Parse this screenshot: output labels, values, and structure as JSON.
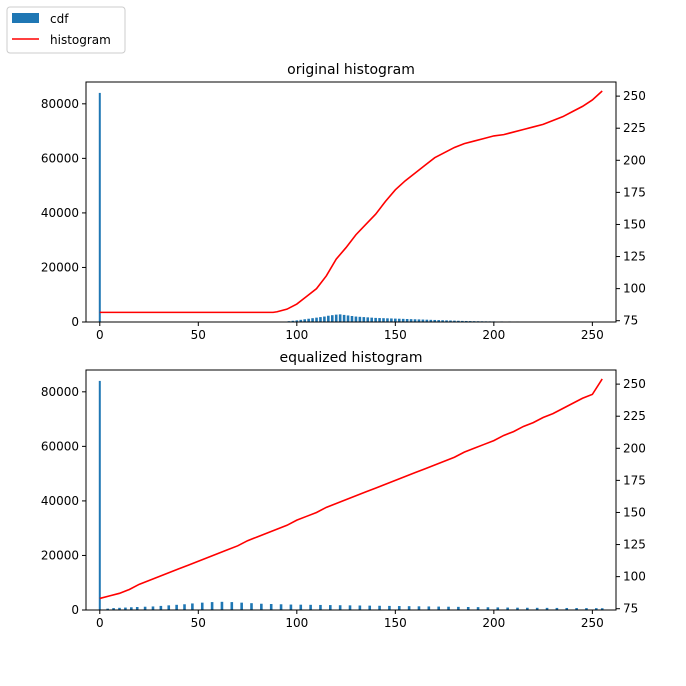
{
  "legend": {
    "placement": "top-left",
    "entries": [
      {
        "label": "cdf",
        "kind": "patch",
        "color": "#1f77b4"
      },
      {
        "label": "histogram",
        "kind": "line",
        "color": "#ff0000"
      }
    ]
  },
  "chart_data": [
    {
      "type": "bar",
      "title": "original histogram",
      "xlim": [
        -7,
        262
      ],
      "ylim": [
        0,
        88000
      ],
      "y2lim": [
        74,
        261
      ],
      "x_ticks": [
        0,
        50,
        100,
        150,
        200,
        250
      ],
      "y_ticks": [
        0,
        20000,
        40000,
        60000,
        80000
      ],
      "y2_ticks": [
        75,
        100,
        125,
        150,
        175,
        200,
        225,
        250
      ],
      "bar_color": "#1f77b4",
      "line_color": "#ff0000",
      "bars": [
        {
          "x": 0,
          "value": 84000
        },
        {
          "x": 96,
          "value": 300
        },
        {
          "x": 98,
          "value": 450
        },
        {
          "x": 100,
          "value": 600
        },
        {
          "x": 102,
          "value": 800
        },
        {
          "x": 104,
          "value": 1000
        },
        {
          "x": 106,
          "value": 1200
        },
        {
          "x": 108,
          "value": 1400
        },
        {
          "x": 110,
          "value": 1600
        },
        {
          "x": 112,
          "value": 1800
        },
        {
          "x": 114,
          "value": 2000
        },
        {
          "x": 116,
          "value": 2300
        },
        {
          "x": 118,
          "value": 2500
        },
        {
          "x": 120,
          "value": 2700
        },
        {
          "x": 122,
          "value": 2800
        },
        {
          "x": 124,
          "value": 2600
        },
        {
          "x": 126,
          "value": 2400
        },
        {
          "x": 128,
          "value": 2200
        },
        {
          "x": 130,
          "value": 2000
        },
        {
          "x": 132,
          "value": 1900
        },
        {
          "x": 134,
          "value": 1800
        },
        {
          "x": 136,
          "value": 1700
        },
        {
          "x": 138,
          "value": 1600
        },
        {
          "x": 140,
          "value": 1500
        },
        {
          "x": 142,
          "value": 1450
        },
        {
          "x": 144,
          "value": 1400
        },
        {
          "x": 146,
          "value": 1350
        },
        {
          "x": 148,
          "value": 1300
        },
        {
          "x": 150,
          "value": 1250
        },
        {
          "x": 152,
          "value": 1200
        },
        {
          "x": 154,
          "value": 1150
        },
        {
          "x": 156,
          "value": 1100
        },
        {
          "x": 158,
          "value": 1050
        },
        {
          "x": 160,
          "value": 1000
        },
        {
          "x": 162,
          "value": 950
        },
        {
          "x": 164,
          "value": 900
        },
        {
          "x": 166,
          "value": 850
        },
        {
          "x": 168,
          "value": 800
        },
        {
          "x": 170,
          "value": 750
        },
        {
          "x": 172,
          "value": 700
        },
        {
          "x": 174,
          "value": 650
        },
        {
          "x": 176,
          "value": 600
        },
        {
          "x": 178,
          "value": 550
        },
        {
          "x": 180,
          "value": 500
        },
        {
          "x": 182,
          "value": 450
        },
        {
          "x": 184,
          "value": 400
        },
        {
          "x": 186,
          "value": 370
        },
        {
          "x": 188,
          "value": 340
        },
        {
          "x": 190,
          "value": 310
        },
        {
          "x": 192,
          "value": 290
        },
        {
          "x": 194,
          "value": 270
        },
        {
          "x": 196,
          "value": 250
        },
        {
          "x": 198,
          "value": 240
        },
        {
          "x": 200,
          "value": 230
        },
        {
          "x": 204,
          "value": 210
        },
        {
          "x": 208,
          "value": 200
        },
        {
          "x": 212,
          "value": 190
        },
        {
          "x": 216,
          "value": 180
        },
        {
          "x": 220,
          "value": 170
        },
        {
          "x": 224,
          "value": 160
        },
        {
          "x": 228,
          "value": 150
        },
        {
          "x": 232,
          "value": 150
        },
        {
          "x": 236,
          "value": 140
        },
        {
          "x": 240,
          "value": 140
        },
        {
          "x": 244,
          "value": 130
        },
        {
          "x": 248,
          "value": 130
        },
        {
          "x": 252,
          "value": 120
        },
        {
          "x": 255,
          "value": 120
        }
      ],
      "line": {
        "x": [
          0,
          10,
          20,
          30,
          40,
          50,
          60,
          70,
          80,
          88,
          90,
          95,
          100,
          105,
          110,
          115,
          120,
          125,
          130,
          135,
          140,
          145,
          150,
          155,
          160,
          165,
          170,
          175,
          180,
          185,
          190,
          195,
          200,
          205,
          210,
          215,
          220,
          225,
          230,
          235,
          240,
          245,
          250,
          255
        ],
        "y": [
          81.5,
          81.5,
          81.5,
          81.5,
          81.5,
          81.5,
          81.5,
          81.5,
          81.5,
          81.5,
          82,
          84,
          88,
          94,
          100,
          110,
          123,
          132,
          142,
          150,
          158,
          168,
          177,
          184,
          190,
          196,
          202,
          206,
          210,
          213,
          215,
          217,
          219,
          220,
          222,
          224,
          226,
          228,
          231,
          234,
          238,
          242,
          247,
          254
        ]
      }
    },
    {
      "type": "bar",
      "title": "equalized histogram",
      "xlim": [
        -7,
        262
      ],
      "ylim": [
        0,
        88000
      ],
      "y2lim": [
        74,
        261
      ],
      "x_ticks": [
        0,
        50,
        100,
        150,
        200,
        250
      ],
      "y_ticks": [
        0,
        20000,
        40000,
        60000,
        80000
      ],
      "y2_ticks": [
        75,
        100,
        125,
        150,
        175,
        200,
        225,
        250
      ],
      "bar_color": "#1f77b4",
      "line_color": "#ff0000",
      "bars": [
        {
          "x": 0,
          "value": 84000
        },
        {
          "x": 4,
          "value": 500
        },
        {
          "x": 7,
          "value": 700
        },
        {
          "x": 10,
          "value": 800
        },
        {
          "x": 13,
          "value": 900
        },
        {
          "x": 16,
          "value": 1000
        },
        {
          "x": 19,
          "value": 1100
        },
        {
          "x": 23,
          "value": 1200
        },
        {
          "x": 27,
          "value": 1300
        },
        {
          "x": 31,
          "value": 1500
        },
        {
          "x": 35,
          "value": 1700
        },
        {
          "x": 39,
          "value": 1900
        },
        {
          "x": 43,
          "value": 2100
        },
        {
          "x": 47,
          "value": 2400
        },
        {
          "x": 52,
          "value": 2700
        },
        {
          "x": 57,
          "value": 2900
        },
        {
          "x": 62,
          "value": 3000
        },
        {
          "x": 67,
          "value": 2900
        },
        {
          "x": 72,
          "value": 2700
        },
        {
          "x": 77,
          "value": 2500
        },
        {
          "x": 82,
          "value": 2300
        },
        {
          "x": 87,
          "value": 2200
        },
        {
          "x": 92,
          "value": 2100
        },
        {
          "x": 97,
          "value": 2000
        },
        {
          "x": 102,
          "value": 1950
        },
        {
          "x": 107,
          "value": 1900
        },
        {
          "x": 112,
          "value": 1850
        },
        {
          "x": 117,
          "value": 1800
        },
        {
          "x": 122,
          "value": 1750
        },
        {
          "x": 127,
          "value": 1700
        },
        {
          "x": 132,
          "value": 1650
        },
        {
          "x": 137,
          "value": 1600
        },
        {
          "x": 142,
          "value": 1550
        },
        {
          "x": 147,
          "value": 1500
        },
        {
          "x": 152,
          "value": 1450
        },
        {
          "x": 157,
          "value": 1400
        },
        {
          "x": 162,
          "value": 1350
        },
        {
          "x": 167,
          "value": 1300
        },
        {
          "x": 172,
          "value": 1250
        },
        {
          "x": 177,
          "value": 1200
        },
        {
          "x": 182,
          "value": 1150
        },
        {
          "x": 187,
          "value": 1100
        },
        {
          "x": 192,
          "value": 1050
        },
        {
          "x": 197,
          "value": 1000
        },
        {
          "x": 202,
          "value": 950
        },
        {
          "x": 207,
          "value": 900
        },
        {
          "x": 212,
          "value": 850
        },
        {
          "x": 217,
          "value": 820
        },
        {
          "x": 222,
          "value": 800
        },
        {
          "x": 227,
          "value": 780
        },
        {
          "x": 232,
          "value": 760
        },
        {
          "x": 237,
          "value": 740
        },
        {
          "x": 242,
          "value": 720
        },
        {
          "x": 247,
          "value": 700
        },
        {
          "x": 252,
          "value": 680
        },
        {
          "x": 255,
          "value": 650
        }
      ],
      "line": {
        "x": [
          0,
          5,
          10,
          15,
          20,
          25,
          30,
          35,
          40,
          45,
          50,
          55,
          60,
          65,
          70,
          75,
          80,
          85,
          90,
          95,
          100,
          105,
          110,
          115,
          120,
          125,
          130,
          135,
          140,
          145,
          150,
          155,
          160,
          165,
          170,
          175,
          180,
          185,
          190,
          195,
          200,
          205,
          210,
          215,
          220,
          225,
          230,
          235,
          240,
          245,
          250,
          255
        ],
        "y": [
          83,
          85,
          87,
          90,
          94,
          97,
          100,
          103,
          106,
          109,
          112,
          115,
          118,
          121,
          124,
          128,
          131,
          134,
          137,
          140,
          144,
          147,
          150,
          154,
          157,
          160,
          163,
          166,
          169,
          172,
          175,
          178,
          181,
          184,
          187,
          190,
          193,
          197,
          200,
          203,
          206,
          210,
          213,
          217,
          220,
          224,
          227,
          231,
          235,
          239,
          242,
          254
        ]
      }
    }
  ]
}
